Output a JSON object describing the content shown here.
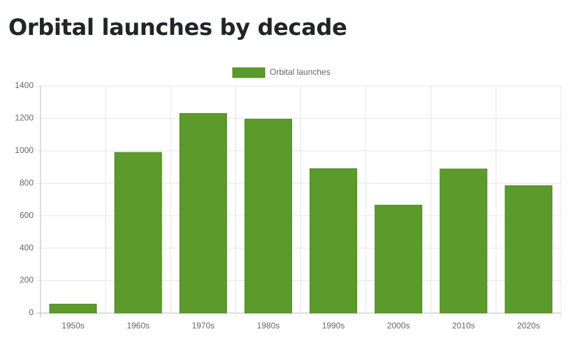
{
  "chart_data": {
    "type": "bar",
    "title": "Orbital launches by decade",
    "categories": [
      "1950s",
      "1960s",
      "1970s",
      "1980s",
      "1990s",
      "2000s",
      "2010s",
      "2020s"
    ],
    "series": [
      {
        "name": "Orbital launches",
        "color": "#5c9a2b",
        "values": [
          55,
          990,
          1230,
          1195,
          890,
          665,
          888,
          785
        ]
      }
    ],
    "ylim": [
      0,
      1400
    ],
    "yticks": [
      0,
      200,
      400,
      600,
      800,
      1000,
      1200,
      1400
    ],
    "grid": true,
    "legend": "top"
  }
}
